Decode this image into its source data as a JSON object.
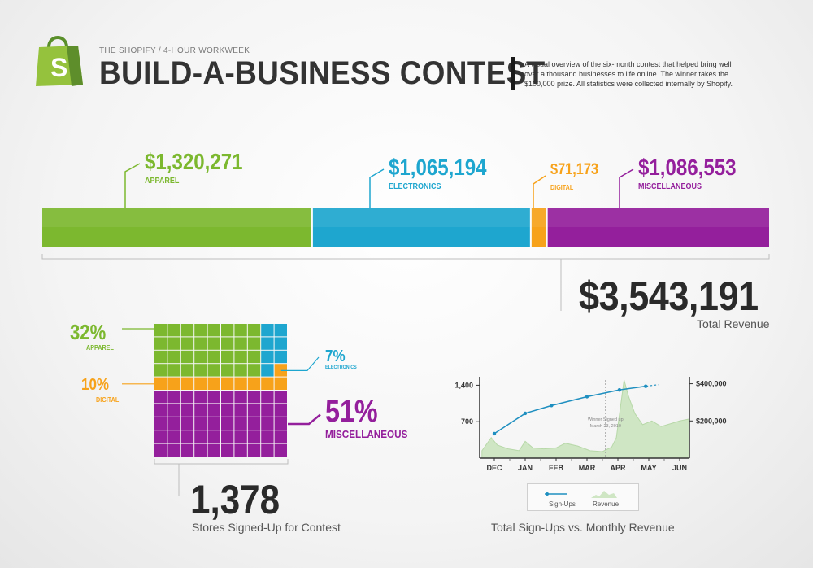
{
  "header": {
    "eyebrow": "THE SHOPIFY / 4-HOUR WORKWEEK",
    "title": "BUILD-A-BUSINESS CONTEST",
    "description": "A visual overview of the six-month contest that helped bring well over a thousand businesses to life online. The winner takes the $100,000 prize. All statistics were collected internally by Shopify.",
    "logo_letter": "S"
  },
  "colors": {
    "apparel": "#7cb82f",
    "electronics": "#1ea6cf",
    "digital": "#f7a21a",
    "miscellaneous": "#941f9c",
    "revenue_area": "#cfe6c4",
    "signups_line": "#1e8fc0"
  },
  "total_revenue": {
    "value": "$3,543,191",
    "label": "Total Revenue"
  },
  "stores": {
    "value": "1,378",
    "label": "Stores Signed-Up for Contest"
  },
  "chart_caption": "Total Sign-Ups vs. Monthly Revenue",
  "chart_data": [
    {
      "type": "bar",
      "stacked": true,
      "categories": [
        "APPAREL",
        "ELECTRONICS",
        "DIGITAL",
        "MISCELLANEOUS"
      ],
      "values": [
        1320271,
        1065194,
        71173,
        1086553
      ],
      "value_labels": [
        "$1,320,271",
        "$1,065,194",
        "$71,173",
        "$1,086,553"
      ],
      "total": 3543191
    },
    {
      "type": "heatmap",
      "grid": [
        10,
        10
      ],
      "categories": [
        "APPAREL",
        "ELECTRONICS",
        "DIGITAL",
        "MISCELLANEOUS"
      ],
      "values": [
        32,
        7,
        10,
        51
      ],
      "value_labels": [
        "32%",
        "7%",
        "10%",
        "51%"
      ]
    },
    {
      "type": "line",
      "x": [
        "DEC",
        "JAN",
        "FEB",
        "MAR",
        "APR",
        "MAY",
        "JUN"
      ],
      "left_axis": {
        "ticks": [
          "1,400",
          "700"
        ],
        "range": [
          0,
          1500
        ]
      },
      "right_axis": {
        "ticks": [
          "$400,000",
          "$200,000"
        ],
        "range": [
          0,
          420000
        ]
      },
      "series": [
        {
          "name": "Sign-Ups",
          "type": "line",
          "axis": "left",
          "x": [
            0.0,
            1.0,
            1.85,
            3.0,
            4.05,
            4.9,
            5.3
          ],
          "y": [
            470,
            860,
            1010,
            1180,
            1310,
            1380,
            1410
          ]
        },
        {
          "name": "Revenue",
          "type": "area",
          "axis": "right",
          "x": [
            -0.4,
            -0.1,
            0.1,
            0.45,
            0.8,
            1.0,
            1.25,
            1.6,
            2.0,
            2.3,
            2.7,
            3.1,
            3.5,
            3.8,
            3.95,
            4.2,
            4.35,
            4.55,
            4.8,
            5.1,
            5.4,
            5.7,
            6.0,
            6.3
          ],
          "y": [
            40000,
            110000,
            70000,
            50000,
            40000,
            90000,
            55000,
            50000,
            55000,
            80000,
            65000,
            40000,
            35000,
            60000,
            110000,
            420000,
            330000,
            240000,
            180000,
            200000,
            170000,
            185000,
            200000,
            210000
          ]
        }
      ],
      "annotation": {
        "text": [
          "Winner Signed up",
          "March 23, 2010"
        ],
        "x": 3.6
      }
    }
  ]
}
